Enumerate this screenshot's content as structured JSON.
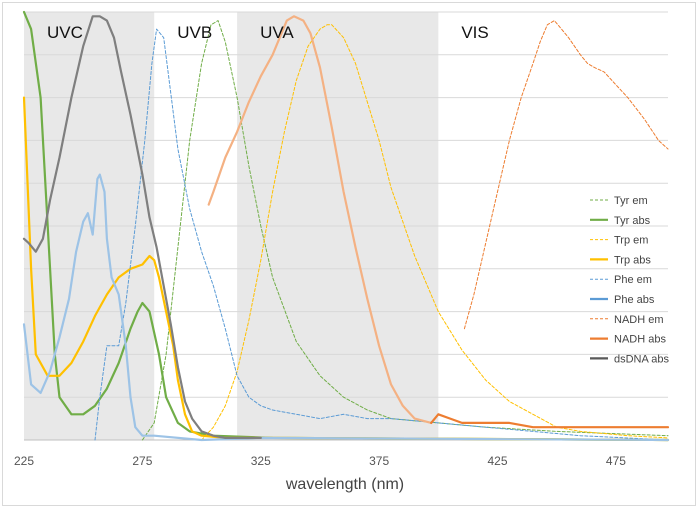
{
  "chart_data": {
    "type": "line",
    "xlabel": "wavelength (nm)",
    "ylabel": "",
    "xlim": [
      225,
      497
    ],
    "ylim": [
      0,
      1
    ],
    "x_ticks": [
      225,
      275,
      325,
      375,
      425,
      475
    ],
    "grid": "horizontal",
    "legend_position": "right",
    "regions": [
      {
        "name": "UVC",
        "x_start": 225,
        "x_end": 280,
        "shaded": true
      },
      {
        "name": "UVB",
        "x_start": 280,
        "x_end": 315,
        "shaded": false
      },
      {
        "name": "UVA",
        "x_start": 315,
        "x_end": 400,
        "shaded": true
      },
      {
        "name": "VIS",
        "x_start": 400,
        "x_end": 497,
        "shaded": false
      }
    ],
    "series": [
      {
        "name": "Tyr em",
        "color": "#70ad47",
        "style": "dashed",
        "points": [
          [
            275,
            0.0
          ],
          [
            280,
            0.04
          ],
          [
            285,
            0.2
          ],
          [
            290,
            0.45
          ],
          [
            295,
            0.7
          ],
          [
            300,
            0.88
          ],
          [
            304,
            0.97
          ],
          [
            307,
            0.98
          ],
          [
            310,
            0.93
          ],
          [
            315,
            0.8
          ],
          [
            320,
            0.64
          ],
          [
            325,
            0.5
          ],
          [
            330,
            0.38
          ],
          [
            340,
            0.23
          ],
          [
            350,
            0.15
          ],
          [
            360,
            0.1
          ],
          [
            370,
            0.07
          ],
          [
            380,
            0.05
          ],
          [
            400,
            0.04
          ],
          [
            420,
            0.03
          ],
          [
            450,
            0.02
          ],
          [
            497,
            0.01
          ]
        ]
      },
      {
        "name": "Tyr abs",
        "color": "#70ad47",
        "style": "solid",
        "points": [
          [
            225,
            1.0
          ],
          [
            228,
            0.96
          ],
          [
            232,
            0.8
          ],
          [
            235,
            0.5
          ],
          [
            238,
            0.2
          ],
          [
            240,
            0.1
          ],
          [
            245,
            0.06
          ],
          [
            250,
            0.06
          ],
          [
            255,
            0.08
          ],
          [
            260,
            0.12
          ],
          [
            265,
            0.18
          ],
          [
            270,
            0.26
          ],
          [
            273,
            0.3
          ],
          [
            275,
            0.32
          ],
          [
            278,
            0.3
          ],
          [
            282,
            0.2
          ],
          [
            285,
            0.1
          ],
          [
            290,
            0.04
          ],
          [
            295,
            0.02
          ],
          [
            305,
            0.01
          ],
          [
            330,
            0.005
          ],
          [
            497,
            0.0
          ]
        ]
      },
      {
        "name": "Trp em",
        "color": "#ffc000",
        "style": "dashed",
        "points": [
          [
            300,
            0.0
          ],
          [
            305,
            0.03
          ],
          [
            310,
            0.08
          ],
          [
            315,
            0.16
          ],
          [
            320,
            0.28
          ],
          [
            325,
            0.42
          ],
          [
            330,
            0.58
          ],
          [
            335,
            0.72
          ],
          [
            340,
            0.84
          ],
          [
            345,
            0.92
          ],
          [
            350,
            0.96
          ],
          [
            353,
            0.97
          ],
          [
            355,
            0.97
          ],
          [
            360,
            0.94
          ],
          [
            365,
            0.88
          ],
          [
            370,
            0.79
          ],
          [
            375,
            0.7
          ],
          [
            380,
            0.59
          ],
          [
            390,
            0.43
          ],
          [
            400,
            0.3
          ],
          [
            410,
            0.21
          ],
          [
            420,
            0.14
          ],
          [
            430,
            0.09
          ],
          [
            440,
            0.06
          ],
          [
            450,
            0.03
          ],
          [
            460,
            0.02
          ],
          [
            480,
            0.01
          ],
          [
            497,
            0.005
          ]
        ]
      },
      {
        "name": "Trp abs",
        "color": "#ffc000",
        "style": "solid",
        "points": [
          [
            225,
            0.8
          ],
          [
            228,
            0.4
          ],
          [
            230,
            0.2
          ],
          [
            235,
            0.15
          ],
          [
            240,
            0.15
          ],
          [
            245,
            0.18
          ],
          [
            250,
            0.23
          ],
          [
            255,
            0.29
          ],
          [
            260,
            0.34
          ],
          [
            265,
            0.38
          ],
          [
            270,
            0.4
          ],
          [
            275,
            0.41
          ],
          [
            278,
            0.43
          ],
          [
            280,
            0.42
          ],
          [
            282,
            0.38
          ],
          [
            285,
            0.3
          ],
          [
            288,
            0.22
          ],
          [
            290,
            0.14
          ],
          [
            293,
            0.06
          ],
          [
            296,
            0.02
          ],
          [
            300,
            0.01
          ],
          [
            310,
            0.005
          ],
          [
            330,
            0.005
          ],
          [
            497,
            0.0
          ]
        ]
      },
      {
        "name": "Phe em",
        "color": "#5b9bd5",
        "style": "dashed",
        "points": [
          [
            255,
            0.0
          ],
          [
            257,
            0.1
          ],
          [
            260,
            0.22
          ],
          [
            265,
            0.22
          ],
          [
            268,
            0.32
          ],
          [
            272,
            0.5
          ],
          [
            276,
            0.7
          ],
          [
            279,
            0.88
          ],
          [
            281,
            0.96
          ],
          [
            284,
            0.94
          ],
          [
            290,
            0.68
          ],
          [
            295,
            0.54
          ],
          [
            300,
            0.44
          ],
          [
            305,
            0.36
          ],
          [
            310,
            0.26
          ],
          [
            315,
            0.15
          ],
          [
            320,
            0.1
          ],
          [
            325,
            0.08
          ],
          [
            330,
            0.07
          ],
          [
            340,
            0.06
          ],
          [
            350,
            0.05
          ],
          [
            360,
            0.06
          ],
          [
            370,
            0.05
          ],
          [
            380,
            0.05
          ],
          [
            400,
            0.04
          ],
          [
            420,
            0.03
          ],
          [
            440,
            0.02
          ],
          [
            460,
            0.01
          ],
          [
            497,
            0.0
          ]
        ]
      },
      {
        "name": "Phe abs",
        "color": "#9dc3e6",
        "style": "solid",
        "points": [
          [
            225,
            0.27
          ],
          [
            228,
            0.13
          ],
          [
            232,
            0.11
          ],
          [
            236,
            0.16
          ],
          [
            240,
            0.24
          ],
          [
            244,
            0.33
          ],
          [
            247,
            0.44
          ],
          [
            250,
            0.51
          ],
          [
            252,
            0.53
          ],
          [
            254,
            0.48
          ],
          [
            256,
            0.61
          ],
          [
            257,
            0.62
          ],
          [
            259,
            0.58
          ],
          [
            260,
            0.47
          ],
          [
            262,
            0.38
          ],
          [
            265,
            0.34
          ],
          [
            268,
            0.22
          ],
          [
            270,
            0.1
          ],
          [
            272,
            0.03
          ],
          [
            275,
            0.01
          ],
          [
            280,
            0.01
          ],
          [
            300,
            0.0
          ],
          [
            325,
            0.005
          ],
          [
            497,
            0.0
          ]
        ]
      },
      {
        "name": "NADH em",
        "color": "#ed7d31",
        "style": "dashed",
        "points": [
          [
            411,
            0.26
          ],
          [
            415,
            0.34
          ],
          [
            420,
            0.46
          ],
          [
            425,
            0.58
          ],
          [
            430,
            0.7
          ],
          [
            435,
            0.8
          ],
          [
            440,
            0.88
          ],
          [
            443,
            0.93
          ],
          [
            446,
            0.97
          ],
          [
            449,
            0.98
          ],
          [
            452,
            0.96
          ],
          [
            455,
            0.94
          ],
          [
            460,
            0.9
          ],
          [
            463,
            0.88
          ],
          [
            466,
            0.87
          ],
          [
            470,
            0.86
          ],
          [
            475,
            0.83
          ],
          [
            480,
            0.8
          ],
          [
            487,
            0.75
          ],
          [
            493,
            0.7
          ],
          [
            497,
            0.68
          ]
        ]
      },
      {
        "name": "NADH abs",
        "color": "#f4b183",
        "style": "solid",
        "points": [
          [
            303,
            0.55
          ],
          [
            305,
            0.58
          ],
          [
            310,
            0.66
          ],
          [
            315,
            0.72
          ],
          [
            320,
            0.79
          ],
          [
            325,
            0.85
          ],
          [
            330,
            0.9
          ],
          [
            333,
            0.94
          ],
          [
            336,
            0.98
          ],
          [
            339,
            0.99
          ],
          [
            343,
            0.98
          ],
          [
            346,
            0.95
          ],
          [
            350,
            0.87
          ],
          [
            355,
            0.73
          ],
          [
            360,
            0.58
          ],
          [
            365,
            0.45
          ],
          [
            370,
            0.33
          ],
          [
            375,
            0.22
          ],
          [
            380,
            0.13
          ],
          [
            385,
            0.08
          ],
          [
            390,
            0.05
          ],
          [
            397,
            0.04
          ]
        ]
      },
      {
        "name": "NADH abs",
        "color": "#ed7d31",
        "style": "solid",
        "points": [
          [
            397,
            0.04
          ],
          [
            400,
            0.06
          ],
          [
            405,
            0.05
          ],
          [
            410,
            0.04
          ],
          [
            415,
            0.04
          ],
          [
            420,
            0.04
          ],
          [
            425,
            0.04
          ],
          [
            430,
            0.04
          ],
          [
            440,
            0.03
          ],
          [
            450,
            0.03
          ],
          [
            460,
            0.03
          ],
          [
            470,
            0.03
          ],
          [
            480,
            0.03
          ],
          [
            490,
            0.03
          ],
          [
            497,
            0.03
          ]
        ]
      },
      {
        "name": "dsDNA abs",
        "color": "#7f7f7f",
        "style": "solid",
        "points": [
          [
            225,
            0.47
          ],
          [
            227,
            0.46
          ],
          [
            230,
            0.44
          ],
          [
            233,
            0.47
          ],
          [
            236,
            0.56
          ],
          [
            240,
            0.66
          ],
          [
            245,
            0.8
          ],
          [
            250,
            0.92
          ],
          [
            254,
            0.99
          ],
          [
            257,
            0.99
          ],
          [
            260,
            0.98
          ],
          [
            263,
            0.94
          ],
          [
            266,
            0.86
          ],
          [
            270,
            0.76
          ],
          [
            275,
            0.62
          ],
          [
            278,
            0.52
          ],
          [
            281,
            0.45
          ],
          [
            284,
            0.36
          ],
          [
            287,
            0.27
          ],
          [
            290,
            0.17
          ],
          [
            293,
            0.09
          ],
          [
            296,
            0.05
          ],
          [
            300,
            0.02
          ],
          [
            305,
            0.01
          ],
          [
            310,
            0.005
          ],
          [
            325,
            0.005
          ]
        ]
      }
    ],
    "legend": [
      {
        "name": "Tyr em",
        "color": "#70ad47",
        "style": "dashed"
      },
      {
        "name": "Tyr abs",
        "color": "#70ad47",
        "style": "solid"
      },
      {
        "name": "Trp em",
        "color": "#ffc000",
        "style": "dashed"
      },
      {
        "name": "Trp abs",
        "color": "#ffc000",
        "style": "solid"
      },
      {
        "name": "Phe em",
        "color": "#5b9bd5",
        "style": "dashed"
      },
      {
        "name": "Phe abs",
        "color": "#5b9bd5",
        "style": "solid"
      },
      {
        "name": "NADH em",
        "color": "#ed7d31",
        "style": "dashed"
      },
      {
        "name": "NADH abs",
        "color": "#ed7d31",
        "style": "solid"
      },
      {
        "name": "dsDNA abs",
        "color": "#595959",
        "style": "solid"
      }
    ]
  }
}
